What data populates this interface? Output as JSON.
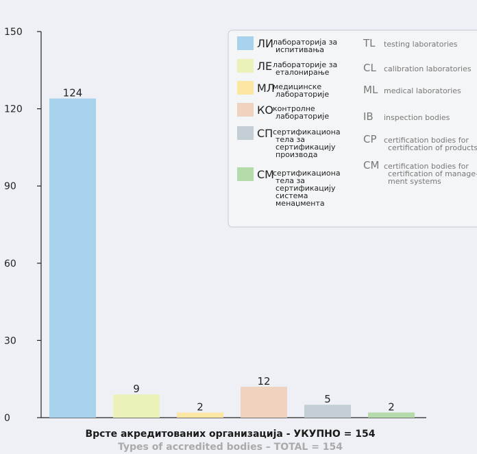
{
  "chart_data": {
    "type": "bar",
    "title": "Врсте акредитованих организација - УКУПНО = 154",
    "subtitle": "Types of accredited bodies – TOTAL = 154",
    "xlabel": "",
    "ylabel": "",
    "ylim": [
      0,
      150
    ],
    "yticks": [
      0,
      30,
      60,
      90,
      120,
      150
    ],
    "grid": false,
    "legend_position": "top-right",
    "categories": [
      "ЛИ",
      "ЛЕ",
      "МЛ",
      "КО",
      "СП",
      "СМ"
    ],
    "values": [
      124,
      9,
      2,
      12,
      5,
      2
    ],
    "colors": [
      "#a8d1ec",
      "#ecf0b9",
      "#fbe7a3",
      "#f0d3bf",
      "#c3cfd4",
      "#b5dbaa"
    ],
    "legend": [
      {
        "code": "ЛИ",
        "sr": [
          "лабораторија за",
          "испитивања"
        ],
        "en_code": "TL",
        "en": [
          "testing laboratories"
        ]
      },
      {
        "code": "ЛЕ",
        "sr": [
          "лабораторије за",
          "еталонирање"
        ],
        "en_code": "CL",
        "en": [
          "calibration laboratories"
        ]
      },
      {
        "code": "МЛ",
        "sr": [
          "медицинске",
          "лабораторије"
        ],
        "en_code": "ML",
        "en": [
          "medical laboratories"
        ]
      },
      {
        "code": "КО",
        "sr": [
          "контролне",
          "лабораторије"
        ],
        "en_code": "IB",
        "en": [
          "inspection bodies"
        ]
      },
      {
        "code": "СП",
        "sr": [
          "сертификациона",
          "тела за",
          "сертификацију",
          "производа"
        ],
        "en_code": "CP",
        "en": [
          "certification bodies for",
          "certification of products"
        ]
      },
      {
        "code": "СМ",
        "sr": [
          "сертификациона",
          "тела за",
          "сертификацију",
          "система",
          "менаџмента"
        ],
        "en_code": "CM",
        "en": [
          "certification bodies for",
          "certification of manage-",
          "ment systems"
        ]
      }
    ]
  }
}
